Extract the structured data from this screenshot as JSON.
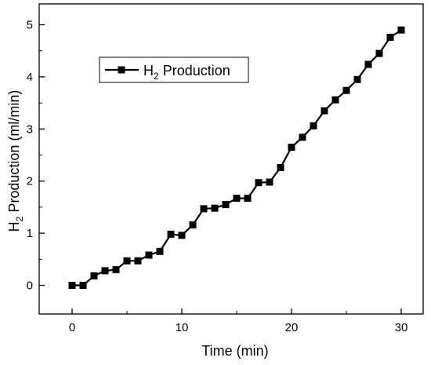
{
  "chart_data": {
    "type": "line",
    "xlabel": "Time (min)",
    "ylabel_main": "H",
    "ylabel_sub": "2",
    "ylabel_rest": " Production (ml/min)",
    "xlim": [
      -3,
      32
    ],
    "ylim": [
      -0.55,
      5.4
    ],
    "xticks": [
      0,
      10,
      20,
      30
    ],
    "yticks": [
      0,
      1,
      2,
      3,
      4,
      5
    ],
    "grid": false,
    "legend_position": "top-left",
    "series": [
      {
        "name_main": "H",
        "name_sub": "2",
        "name_rest": " Production",
        "color": "#000000",
        "marker": "square",
        "x": [
          0,
          1,
          2,
          3,
          4,
          5,
          6,
          7,
          8,
          9,
          10,
          11,
          12,
          13,
          14,
          15,
          16,
          17,
          18,
          19,
          20,
          21,
          22,
          23,
          24,
          25,
          26,
          27,
          28,
          29,
          30
        ],
        "y": [
          0.0,
          0.0,
          0.18,
          0.28,
          0.3,
          0.47,
          0.47,
          0.58,
          0.65,
          0.98,
          0.96,
          1.16,
          1.47,
          1.48,
          1.55,
          1.67,
          1.67,
          1.97,
          1.98,
          2.26,
          2.65,
          2.84,
          3.06,
          3.35,
          3.56,
          3.74,
          3.95,
          4.24,
          4.45,
          4.76,
          4.9
        ]
      }
    ]
  }
}
